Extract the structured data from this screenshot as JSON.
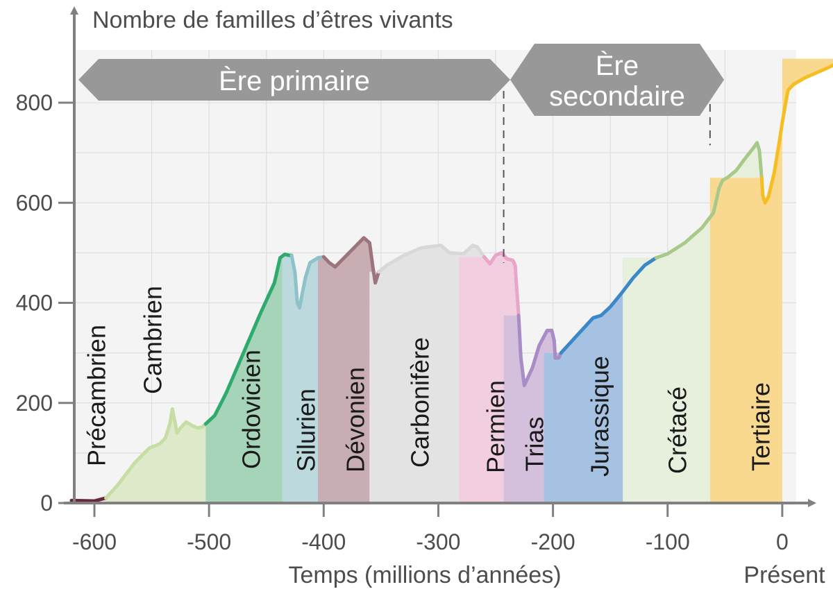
{
  "chart_data": {
    "type": "area",
    "title": "",
    "ylabel": "Nombre de familles d’êtres vivants",
    "xlabel": "Temps (millions d’années)",
    "present_label": "Présent",
    "xlim": [
      -620,
      0
    ],
    "ylim": [
      0,
      900
    ],
    "x_ticks": [
      -600,
      -500,
      -400,
      -300,
      -200,
      -100,
      0
    ],
    "x_tick_labels": [
      "-600",
      "-500",
      "-400",
      "-300",
      "-200",
      "-100",
      "0"
    ],
    "y_ticks": [
      0,
      200,
      400,
      600,
      800
    ],
    "y_tick_labels": [
      "0",
      "200",
      "400",
      "600",
      "800"
    ],
    "grid": true,
    "eras": [
      {
        "label": "Ère primaire",
        "start": -620,
        "end": -243
      },
      {
        "label": "Ère secondaire",
        "label_lines": [
          "Ère",
          "secondaire"
        ],
        "start": -243,
        "end": -63
      }
    ],
    "era_boundaries": [
      -243,
      -63
    ],
    "periods": [
      {
        "name": "Précambrien",
        "start": -620,
        "end": -590,
        "fill": "none",
        "line": "#6b2737",
        "points": [
          [
            -620,
            5
          ],
          [
            -600,
            4
          ],
          [
            -590,
            10
          ]
        ]
      },
      {
        "name": "Cambrien",
        "start": -590,
        "end": -503,
        "fill": "#dde9c9",
        "line": "#c6dea4",
        "points": [
          [
            -590,
            10
          ],
          [
            -580,
            35
          ],
          [
            -565,
            80
          ],
          [
            -552,
            110
          ],
          [
            -543,
            118
          ],
          [
            -538,
            130
          ],
          [
            -534,
            160
          ],
          [
            -532,
            188
          ],
          [
            -530,
            165
          ],
          [
            -528,
            140
          ],
          [
            -525,
            150
          ],
          [
            -520,
            162
          ],
          [
            -515,
            155
          ],
          [
            -510,
            150
          ],
          [
            -506,
            152
          ],
          [
            -503,
            158
          ]
        ]
      },
      {
        "name": "Ordovicien",
        "start": -503,
        "end": -436,
        "fill": "#a6d4b8",
        "line": "#2eaa6e",
        "points": [
          [
            -503,
            158
          ],
          [
            -495,
            175
          ],
          [
            -485,
            220
          ],
          [
            -470,
            300
          ],
          [
            -455,
            380
          ],
          [
            -443,
            440
          ],
          [
            -438,
            490
          ],
          [
            -434,
            497
          ],
          [
            -430,
            495
          ],
          [
            -428,
            495
          ]
        ]
      },
      {
        "name": "Silurien",
        "start": -436,
        "end": -405,
        "fill": "#bcd9dd",
        "line": "#8fc1ca",
        "points": [
          [
            -428,
            495
          ],
          [
            -425,
            460
          ],
          [
            -423,
            400
          ],
          [
            -421,
            390
          ],
          [
            -419,
            415
          ],
          [
            -416,
            450
          ],
          [
            -412,
            480
          ],
          [
            -405,
            490
          ],
          [
            -400,
            492
          ]
        ]
      },
      {
        "name": "Dévonien",
        "start": -405,
        "end": -360,
        "fill": "#c8aeb3",
        "line": "#9b747c",
        "points": [
          [
            -400,
            492
          ],
          [
            -395,
            480
          ],
          [
            -390,
            472
          ],
          [
            -380,
            495
          ],
          [
            -365,
            530
          ],
          [
            -360,
            520
          ],
          [
            -357,
            470
          ],
          [
            -355,
            440
          ],
          [
            -352,
            462
          ]
        ]
      },
      {
        "name": "Carbonifère",
        "start": -360,
        "end": -282,
        "fill": "#e3e3e3",
        "line": "#d8d8d8",
        "points": [
          [
            -352,
            462
          ],
          [
            -345,
            475
          ],
          [
            -330,
            495
          ],
          [
            -315,
            510
          ],
          [
            -298,
            515
          ],
          [
            -290,
            500
          ],
          [
            -278,
            498
          ],
          [
            -270,
            515
          ],
          [
            -266,
            512
          ],
          [
            -262,
            498
          ],
          [
            -260,
            492
          ]
        ]
      },
      {
        "name": "Permien",
        "start": -282,
        "end": -243,
        "fill": "#f1cfe1",
        "line": "#e8a6c8",
        "points": [
          [
            -260,
            492
          ],
          [
            -255,
            478
          ],
          [
            -250,
            495
          ],
          [
            -245,
            500
          ],
          [
            -240,
            488
          ],
          [
            -235,
            485
          ],
          [
            -233,
            475
          ],
          [
            -230,
            375
          ]
        ]
      },
      {
        "name": "Trias",
        "start": -243,
        "end": -208,
        "fill": "#d4bfdd",
        "line": "#a98bc6",
        "points": [
          [
            -230,
            375
          ],
          [
            -228,
            290
          ],
          [
            -225,
            235
          ],
          [
            -218,
            270
          ],
          [
            -212,
            315
          ],
          [
            -205,
            345
          ],
          [
            -201,
            345
          ],
          [
            -199,
            325
          ],
          [
            -198,
            290
          ],
          [
            -195,
            290
          ],
          [
            -193,
            300
          ]
        ]
      },
      {
        "name": "Jurassique",
        "start": -208,
        "end": -139,
        "fill": "#a6c2e3",
        "line": "#3b87c8",
        "points": [
          [
            -193,
            300
          ],
          [
            -185,
            320
          ],
          [
            -175,
            345
          ],
          [
            -165,
            370
          ],
          [
            -158,
            375
          ],
          [
            -150,
            392
          ],
          [
            -140,
            420
          ],
          [
            -130,
            450
          ],
          [
            -120,
            475
          ],
          [
            -110,
            490
          ]
        ]
      },
      {
        "name": "Crétacé",
        "start": -139,
        "end": -63,
        "fill": "#e6f0dd",
        "line": "#a9c98b",
        "points": [
          [
            -110,
            490
          ],
          [
            -100,
            498
          ],
          [
            -85,
            520
          ],
          [
            -70,
            550
          ],
          [
            -60,
            580
          ],
          [
            -55,
            630
          ],
          [
            -52,
            645
          ],
          [
            -48,
            650
          ],
          [
            -40,
            665
          ],
          [
            -32,
            690
          ],
          [
            -25,
            710
          ],
          [
            -22,
            720
          ],
          [
            -20,
            705
          ],
          [
            -19,
            680
          ],
          [
            -18,
            650
          ]
        ]
      },
      {
        "name": "Tertiaire",
        "start": -63,
        "end": 0,
        "fill": "#f9d98f",
        "line": "#f5be22",
        "points": [
          [
            -18,
            650
          ],
          [
            -17,
            615
          ],
          [
            -15,
            600
          ],
          [
            -12,
            612
          ],
          [
            -7,
            660
          ],
          [
            -3,
            715
          ],
          [
            0,
            760
          ],
          [
            3,
            800
          ],
          [
            5,
            825
          ],
          [
            10,
            837
          ],
          [
            20,
            850
          ],
          [
            40,
            870
          ],
          [
            55,
            888
          ]
        ]
      }
    ]
  }
}
